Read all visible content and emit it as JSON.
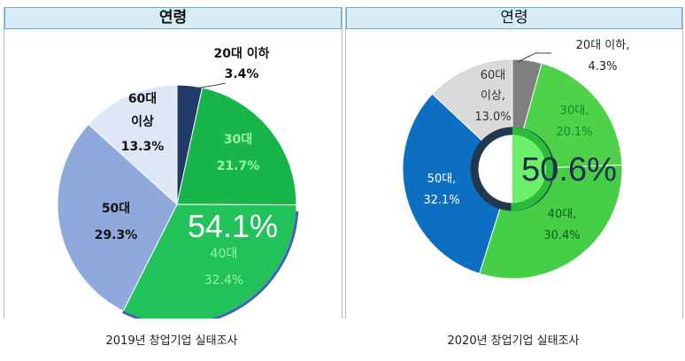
{
  "chart_data": [
    {
      "type": "pie",
      "title": "연령",
      "categories": [
        "20대 이하",
        "30대",
        "40대",
        "50대",
        "60대 이상"
      ],
      "values": [
        3.4,
        21.7,
        32.4,
        29.3,
        13.3
      ],
      "value_labels": [
        "3.4%",
        "21.7%",
        "32.4%",
        "29.3%",
        "13.3%"
      ],
      "colors": [
        "#203a6b",
        "#18b54a",
        "#22c25a",
        "#8fa9dc",
        "#dde7f6"
      ],
      "highlight": "54.1%",
      "caption": "2019년 창업기업 실태조사"
    },
    {
      "type": "pie",
      "style": "donut",
      "title": "연령",
      "categories": [
        "20대 이하,",
        "30대,",
        "40대,",
        "50대,",
        "60대 이상,"
      ],
      "values": [
        4.3,
        20.1,
        30.4,
        32.1,
        13.0
      ],
      "value_labels": [
        "4.3%",
        "20.1%",
        "30.4%",
        "32.1%",
        "13.0%"
      ],
      "colors": [
        "#7f7f7f",
        "#4fd14a",
        "#46cf46",
        "#0c6fc2",
        "#d9d9d9"
      ],
      "highlight": "50.6%",
      "caption": "2020년 창업기업 실태조사"
    }
  ]
}
